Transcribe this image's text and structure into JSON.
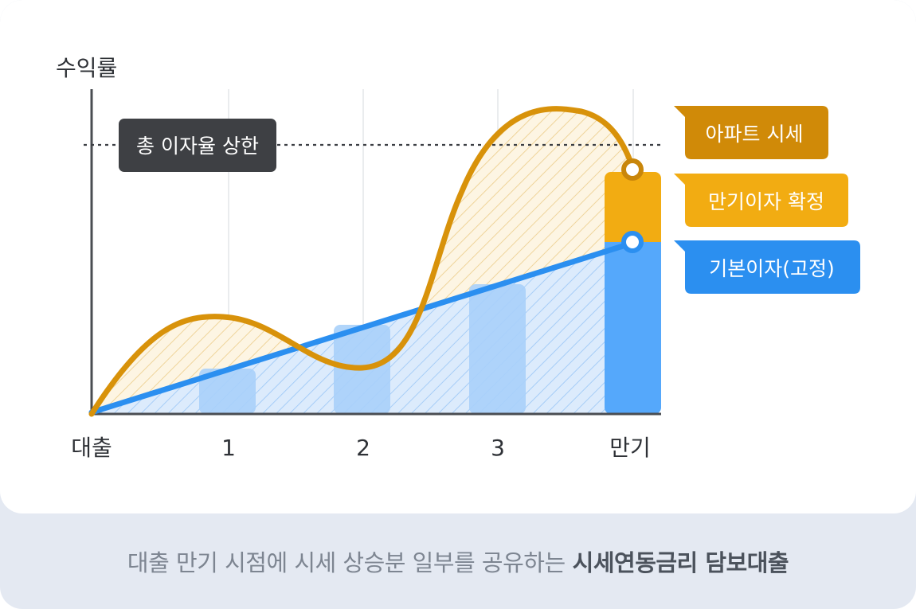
{
  "chart_data": {
    "type": "line",
    "ylabel": "수익률",
    "categories": [
      "대출",
      "1",
      "2",
      "3",
      "만기"
    ],
    "cap_label": "총 이자율 상한",
    "series": [
      {
        "name": "아파트 시세",
        "color": "#d8920a",
        "style": "curve"
      },
      {
        "name": "기본이자(고정)",
        "color": "#2b8ff0",
        "style": "line"
      }
    ],
    "bar_values": [
      0.15,
      0.28,
      0.4,
      0.53
    ],
    "final_bar": {
      "base_level": 0.53,
      "top_level": 0.75
    },
    "legend": [
      {
        "label": "아파트 시세",
        "color": "#d08a08"
      },
      {
        "label": "만기이자 확정",
        "color": "#f2ac12"
      },
      {
        "label": "기본이자(고정)",
        "color": "#2b8ff0"
      }
    ]
  },
  "caption": {
    "normal": "대출 만기 시점에 시세 상승분 일부를 공유하는",
    "bold": "시세연동금리 담보대출"
  }
}
